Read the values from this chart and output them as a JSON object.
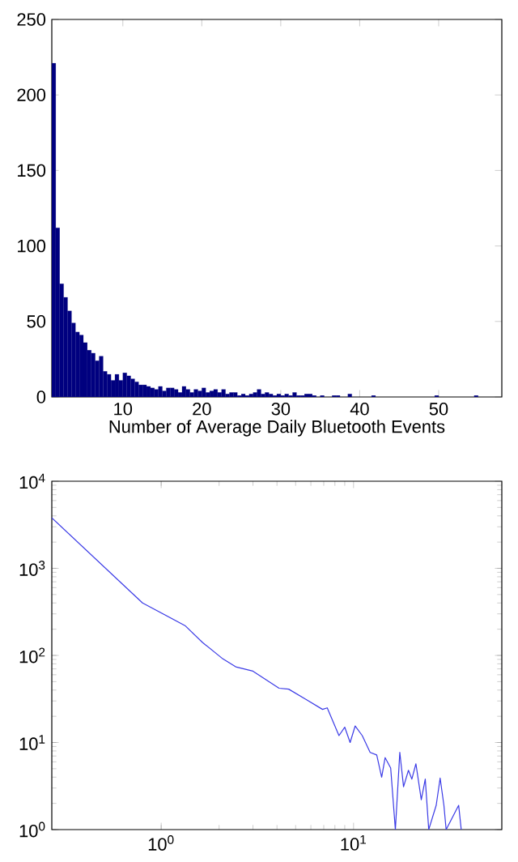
{
  "chart_data": [
    {
      "type": "histogram",
      "xlabel": "Number of Average Daily Bluetooth Events",
      "color": "#00007f",
      "bins": [
        1,
        1.5,
        2,
        2.5,
        3,
        3.5,
        4,
        4.5,
        5,
        5.5,
        6,
        6.5,
        7,
        7.5,
        8,
        8.5,
        9,
        9.5,
        10,
        10.5,
        11,
        11.5,
        12,
        12.5,
        13,
        13.5,
        14,
        14.5,
        15,
        15.5,
        16,
        16.5,
        17,
        17.5,
        18,
        18.5,
        19,
        19.5,
        20,
        20.5,
        21,
        21.5,
        22,
        22.5,
        23,
        23.5,
        24,
        24.5,
        25,
        25.5,
        26,
        26.5,
        27,
        27.5,
        28,
        28.5,
        29,
        29.5,
        30,
        30.5,
        31,
        31.5,
        32,
        32.5,
        33,
        33.5,
        34,
        34.5,
        35,
        35.5,
        36,
        36.5,
        37,
        37.5,
        38,
        38.5,
        39,
        39.5,
        40,
        40.5,
        41,
        41.5,
        42,
        42.5,
        43,
        43.5,
        44,
        44.5,
        45,
        45.5,
        46,
        46.5,
        47,
        47.5,
        48,
        48.5,
        49,
        49.5,
        50,
        50.5,
        51,
        51.5,
        52,
        52.5,
        53,
        53.5,
        54,
        54.5,
        55,
        55.5,
        56
      ],
      "values": [
        221,
        112,
        75,
        66,
        57,
        49,
        43,
        41,
        36,
        31,
        29,
        24,
        27,
        17,
        15,
        11,
        15,
        11,
        16,
        14,
        12,
        10,
        8,
        8,
        7,
        6,
        5,
        7,
        4,
        6,
        6,
        5,
        3,
        7,
        5,
        3,
        5,
        4,
        6,
        3,
        4,
        5,
        3,
        5,
        2,
        3,
        3,
        1,
        2,
        1,
        2,
        3,
        5,
        2,
        3,
        2,
        1,
        2,
        1,
        2,
        1,
        3,
        1,
        1,
        2,
        2,
        1,
        null,
        1,
        null,
        null,
        1,
        1,
        null,
        null,
        2,
        null,
        null,
        null,
        null,
        null,
        1,
        null,
        null,
        null,
        null,
        null,
        null,
        null,
        null,
        null,
        null,
        null,
        null,
        null,
        null,
        null,
        1,
        null,
        null,
        null,
        null,
        null,
        null,
        null,
        null,
        null,
        1,
        null,
        null
      ],
      "xlim": [
        1,
        58
      ],
      "ylim": [
        0,
        250
      ],
      "xticks": [
        10,
        20,
        30,
        40,
        50
      ],
      "yticks": [
        0,
        50,
        100,
        150,
        200,
        250
      ]
    },
    {
      "type": "line",
      "color": "#3a3ae6",
      "log": "xy",
      "x": [
        0.27,
        0.8,
        1.33,
        1.64,
        2.07,
        2.44,
        3.0,
        4.1,
        4.6,
        5.7,
        6.9,
        7.3,
        8.4,
        9.0,
        9.6,
        10.2,
        11.1,
        12.2,
        13.2,
        14.0,
        14.6,
        15.6,
        16.5,
        17.4,
        18.2,
        19.3,
        20.1,
        21.1,
        22.5,
        23.6,
        24.6,
        26.9,
        28.2,
        29.5,
        30.3,
        35.2,
        36.3
      ],
      "values": [
        3800,
        400,
        220,
        141,
        93,
        74,
        66,
        42,
        41,
        31,
        24,
        25,
        12,
        15,
        10,
        15.5,
        12,
        7.7,
        7.2,
        4.0,
        6.7,
        5.1,
        1,
        7.7,
        3.1,
        4.8,
        3.8,
        5.7,
        2.2,
        3.8,
        1,
        1.9,
        3.9,
        1.9,
        1,
        1.9,
        1
      ],
      "xlim": [
        0.27,
        59
      ],
      "ylim": [
        1,
        10000
      ],
      "xticks": [
        {
          "value": 1,
          "label": "10$^{0}$"
        },
        {
          "value": 10,
          "label": "10$^{1}$"
        }
      ],
      "yticks": [
        {
          "value": 1,
          "label": "10$^{0}$"
        },
        {
          "value": 10,
          "label": "10$^{1}$"
        },
        {
          "value": 100,
          "label": "10$^{2}$"
        },
        {
          "value": 1000,
          "label": "10$^{3}$"
        },
        {
          "value": 10000,
          "label": "10$^{4}$"
        }
      ]
    }
  ]
}
